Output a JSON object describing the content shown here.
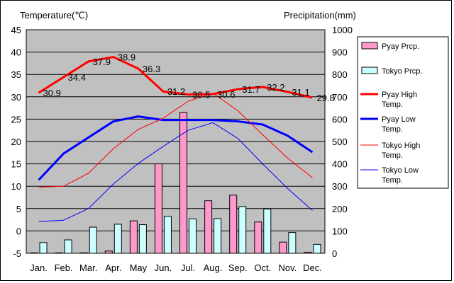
{
  "chart_data": {
    "type": "bar+line",
    "left_axis_label": "Temperature(℃)",
    "right_axis_label": "Precipitation(mm)",
    "categories": [
      "Jan.",
      "Feb.",
      "Mar.",
      "Apr.",
      "May",
      "Jun.",
      "Jul.",
      "Aug.",
      "Sep.",
      "Oct.",
      "Nov.",
      "Dec."
    ],
    "left_ylim": [
      -5,
      45
    ],
    "left_ticks": [
      -5,
      0,
      5,
      10,
      15,
      20,
      25,
      30,
      35,
      40,
      45
    ],
    "right_ylim": [
      0,
      1000
    ],
    "right_ticks": [
      0,
      100,
      200,
      300,
      400,
      500,
      600,
      700,
      800,
      900,
      1000
    ],
    "bar_series": [
      {
        "name": "Pyay Prcp.",
        "color": "#ff99cc",
        "values": [
          2,
          2,
          2,
          10,
          145,
          400,
          630,
          235,
          260,
          140,
          50,
          5
        ]
      },
      {
        "name": "Tokyo Prcp.",
        "color": "#ccffff",
        "values": [
          48,
          60,
          117,
          130,
          128,
          165,
          154,
          155,
          209,
          198,
          93,
          40
        ]
      }
    ],
    "line_series": [
      {
        "name": "Pyay High Temp.",
        "color": "#ff0000",
        "width": "thick",
        "values": [
          30.9,
          34.4,
          37.9,
          38.9,
          36.3,
          31.2,
          30.5,
          30.6,
          31.7,
          32.2,
          31.1,
          29.8
        ],
        "labels": [
          "30.9",
          "34.4",
          "37.9",
          "38.9",
          "36.3",
          "31.2",
          "30.5",
          "30.6",
          "31.7",
          "32.2",
          "31.1",
          "29.8"
        ]
      },
      {
        "name": "Pyay Low Temp.",
        "color": "#0000ff",
        "width": "thick",
        "values": [
          11.4,
          17.3,
          20.9,
          24.5,
          25.6,
          24.8,
          24.8,
          24.8,
          24.5,
          23.8,
          21.3,
          17.6
        ]
      },
      {
        "name": "Tokyo High Temp.",
        "color": "#ff0000",
        "width": "thin",
        "values": [
          9.8,
          10.0,
          12.9,
          18.4,
          22.7,
          25.2,
          29.0,
          30.8,
          26.9,
          21.5,
          16.3,
          11.9
        ]
      },
      {
        "name": "Tokyo Low Temp.",
        "color": "#0000ff",
        "width": "thin",
        "values": [
          2.1,
          2.4,
          5.0,
          10.5,
          15.1,
          18.9,
          22.5,
          24.2,
          20.7,
          15.0,
          9.5,
          4.6
        ]
      }
    ],
    "legend": [
      {
        "key": "pyay-prcp",
        "label": "Pyay Prcp.",
        "kind": "bar",
        "color": "#ff99cc"
      },
      {
        "key": "tokyo-prcp",
        "label": "Tokyo Prcp.",
        "kind": "bar",
        "color": "#ccffff"
      },
      {
        "key": "pyay-high",
        "label": "Pyay High Temp.",
        "kind": "thick-line",
        "color": "#ff0000"
      },
      {
        "key": "pyay-low",
        "label": "Pyay Low Temp.",
        "kind": "thick-line",
        "color": "#0000ff"
      },
      {
        "key": "tokyo-high",
        "label": "Tokyo High Temp.",
        "kind": "thin-line",
        "color": "#ff0000"
      },
      {
        "key": "tokyo-low",
        "label": "Tokyo Low Temp.",
        "kind": "thin-line",
        "color": "#0000ff"
      }
    ],
    "plot_background": "#c0c0c0",
    "grid": true,
    "legend_position": "right"
  }
}
